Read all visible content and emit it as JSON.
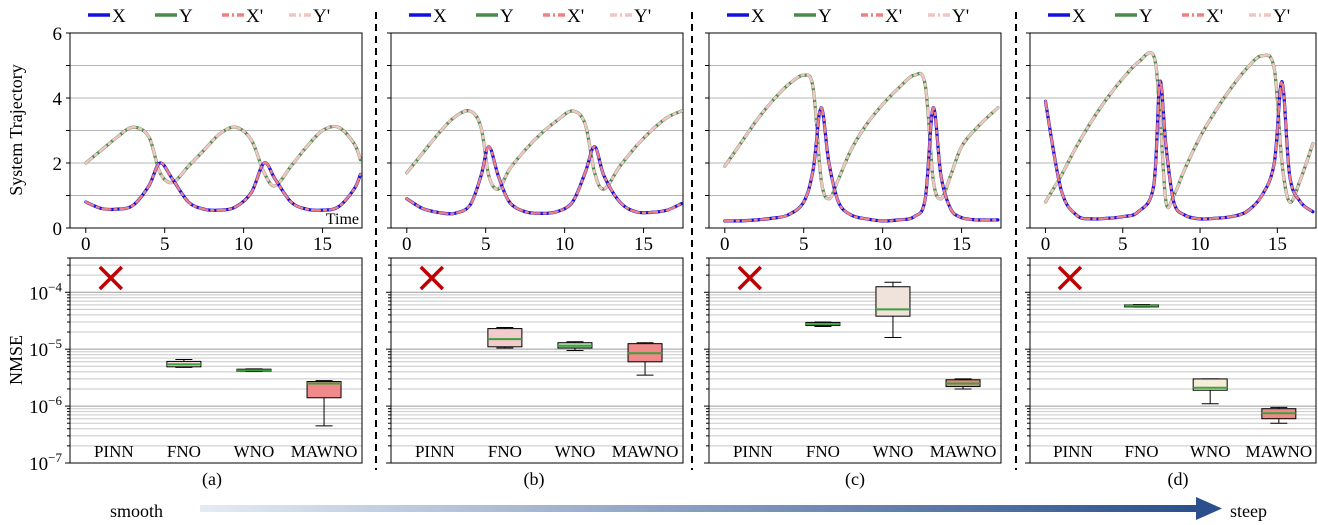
{
  "figure": {
    "legend_entries": [
      {
        "label": "X",
        "color": "#1010e0",
        "dash": "solid"
      },
      {
        "label": "Y",
        "color": "#4a8a4a",
        "dash": "solid"
      },
      {
        "label": "X'",
        "color": "#f08080",
        "dash": "dashdot"
      },
      {
        "label": "Y'",
        "color": "#f2c4c4",
        "dash": "dashdot"
      }
    ],
    "top_ylabel": "System Trajectory",
    "top_xlabel": "Time",
    "bottom_ylabel": "NMSE",
    "panel_labels": [
      "(a)",
      "(b)",
      "(c)",
      "(d)"
    ],
    "arrow_left_label": "smooth",
    "arrow_right_label": "steep"
  },
  "chart_data": [
    {
      "type": "line",
      "panel": "(a)",
      "xlim": [
        -1,
        17.5
      ],
      "ylim": [
        0,
        6
      ],
      "x_ticks": [
        "0",
        "5",
        "10",
        "15"
      ],
      "y_ticks": [
        "0",
        "2",
        "4",
        "6"
      ],
      "series": [
        {
          "name": "X",
          "x": [
            0,
            1,
            2,
            3,
            4,
            4.7,
            5.5,
            6.5,
            7.5,
            8.5,
            9.5,
            10.5,
            11.3,
            12,
            13,
            14,
            15,
            16,
            17,
            17.4
          ],
          "y": [
            0.8,
            0.6,
            0.58,
            0.7,
            1.3,
            2.0,
            1.5,
            0.8,
            0.58,
            0.55,
            0.65,
            1.1,
            2.0,
            1.5,
            0.8,
            0.58,
            0.55,
            0.65,
            1.2,
            1.65
          ]
        },
        {
          "name": "Y",
          "x": [
            0,
            1,
            2,
            3,
            4,
            4.7,
            5.5,
            6.5,
            7.5,
            8.5,
            9.5,
            10.5,
            11.3,
            12,
            13,
            14,
            15,
            16,
            17,
            17.4
          ],
          "y": [
            2.0,
            2.4,
            2.8,
            3.1,
            2.8,
            1.7,
            1.4,
            1.9,
            2.4,
            2.9,
            3.1,
            2.7,
            1.7,
            1.3,
            1.9,
            2.5,
            3.0,
            3.1,
            2.6,
            2.1
          ]
        }
      ]
    },
    {
      "type": "line",
      "panel": "(b)",
      "xlim": [
        -1,
        17.5
      ],
      "ylim": [
        0,
        6
      ],
      "x_ticks": [
        "0",
        "5",
        "10",
        "15"
      ],
      "y_ticks": [],
      "series": [
        {
          "name": "X",
          "x": [
            0,
            1,
            2,
            3,
            4,
            4.7,
            5.2,
            5.8,
            6.5,
            7.5,
            8.5,
            9.5,
            10.5,
            11.3,
            11.9,
            12.5,
            13.5,
            14.5,
            15.5,
            16.5,
            17.4
          ],
          "y": [
            0.9,
            0.6,
            0.48,
            0.45,
            0.7,
            1.6,
            2.5,
            1.6,
            0.8,
            0.5,
            0.45,
            0.5,
            0.8,
            1.7,
            2.5,
            1.6,
            0.8,
            0.5,
            0.48,
            0.55,
            0.75
          ]
        },
        {
          "name": "Y",
          "x": [
            0,
            1,
            2,
            3,
            4,
            4.7,
            5.2,
            5.8,
            6.5,
            7.5,
            8.5,
            9.5,
            10.5,
            11.3,
            11.9,
            12.5,
            13.5,
            14.5,
            15.5,
            16.5,
            17.4
          ],
          "y": [
            1.7,
            2.3,
            2.9,
            3.4,
            3.6,
            3.1,
            1.6,
            1.2,
            1.8,
            2.4,
            2.9,
            3.3,
            3.6,
            3.2,
            1.7,
            1.2,
            1.9,
            2.5,
            3.0,
            3.4,
            3.6
          ]
        }
      ]
    },
    {
      "type": "line",
      "panel": "(c)",
      "xlim": [
        -1,
        17.5
      ],
      "ylim": [
        0,
        6
      ],
      "x_ticks": [
        "0",
        "5",
        "10",
        "15"
      ],
      "y_ticks": [],
      "series": [
        {
          "name": "X",
          "x": [
            0,
            1,
            2,
            3,
            4,
            5,
            5.6,
            6.1,
            6.6,
            7.2,
            8,
            9,
            10,
            11,
            12,
            12.7,
            13.2,
            13.7,
            14.3,
            15,
            16,
            17.3
          ],
          "y": [
            0.22,
            0.22,
            0.25,
            0.3,
            0.4,
            0.8,
            1.8,
            3.7,
            2.0,
            0.8,
            0.4,
            0.28,
            0.22,
            0.25,
            0.35,
            0.9,
            3.7,
            1.6,
            0.6,
            0.32,
            0.25,
            0.25
          ]
        },
        {
          "name": "Y",
          "x": [
            0,
            1,
            2,
            3,
            4,
            5,
            5.6,
            6.1,
            6.6,
            7.2,
            8,
            9,
            10,
            11,
            12,
            12.7,
            13.2,
            13.7,
            14.3,
            15,
            16,
            17.3
          ],
          "y": [
            1.9,
            2.6,
            3.3,
            3.9,
            4.4,
            4.7,
            4.3,
            1.5,
            0.9,
            1.5,
            2.4,
            3.2,
            3.8,
            4.3,
            4.7,
            4.4,
            1.5,
            0.9,
            1.6,
            2.5,
            3.1,
            3.7
          ]
        }
      ]
    },
    {
      "type": "line",
      "panel": "(d)",
      "xlim": [
        -1,
        17.5
      ],
      "ylim": [
        0,
        6
      ],
      "x_ticks": [
        "0",
        "5",
        "10",
        "15"
      ],
      "y_ticks": [],
      "series": [
        {
          "name": "X",
          "x": [
            0,
            1,
            2,
            3,
            4,
            5,
            6,
            7,
            7.4,
            7.8,
            8.3,
            9,
            10,
            11,
            12,
            13,
            14,
            14.8,
            15.3,
            15.8,
            16.5,
            17.3
          ],
          "y": [
            3.9,
            1.2,
            0.4,
            0.28,
            0.3,
            0.35,
            0.5,
            1.3,
            4.5,
            2.5,
            0.8,
            0.4,
            0.28,
            0.3,
            0.35,
            0.5,
            1.0,
            2.0,
            4.5,
            1.6,
            0.8,
            0.5
          ]
        },
        {
          "name": "Y",
          "x": [
            0,
            1,
            2,
            3,
            4,
            5,
            6,
            7,
            7.4,
            7.8,
            8.3,
            9,
            10,
            11,
            12,
            13,
            14,
            14.8,
            15.3,
            15.8,
            16.5,
            17.3
          ],
          "y": [
            0.8,
            1.6,
            2.5,
            3.3,
            4.0,
            4.6,
            5.1,
            5.3,
            3.5,
            0.8,
            1.0,
            1.8,
            2.8,
            3.6,
            4.3,
            4.9,
            5.3,
            4.9,
            2.0,
            0.8,
            1.5,
            2.6
          ]
        }
      ]
    },
    {
      "type": "box",
      "panel": "(a)",
      "yscale": "log",
      "ylim": [
        1e-07,
        0.0004
      ],
      "y_ticks": [
        "10-7",
        "10-6",
        "10-5",
        "10-4"
      ],
      "categories": [
        "PINN",
        "FNO",
        "WNO",
        "MAWNO"
      ],
      "failed": [
        "PINN"
      ],
      "boxes": [
        {
          "name": "FNO",
          "min": 4.8e-06,
          "q1": 4.9e-06,
          "median": 5.4e-06,
          "q3": 6.1e-06,
          "max": 6.6e-06,
          "fill": "#ead6d2"
        },
        {
          "name": "WNO",
          "min": 4.05e-06,
          "q1": 4.1e-06,
          "median": 4.25e-06,
          "q3": 4.45e-06,
          "max": 4.5e-06,
          "fill": "#bfe2bf"
        },
        {
          "name": "MAWNO",
          "min": 4.5e-07,
          "q1": 1.4e-06,
          "median": 2.5e-06,
          "q3": 2.7e-06,
          "max": 2.8e-06,
          "fill": "#f08a8a"
        }
      ]
    },
    {
      "type": "box",
      "panel": "(b)",
      "yscale": "log",
      "ylim": [
        1e-07,
        0.0004
      ],
      "y_ticks": [],
      "categories": [
        "PINN",
        "FNO",
        "WNO",
        "MAWNO"
      ],
      "failed": [
        "PINN"
      ],
      "boxes": [
        {
          "name": "FNO",
          "min": 1.05e-05,
          "q1": 1.1e-05,
          "median": 1.5e-05,
          "q3": 2.3e-05,
          "max": 2.4e-05,
          "fill": "#f2cccc"
        },
        {
          "name": "WNO",
          "min": 9.5e-06,
          "q1": 1.05e-05,
          "median": 1.15e-05,
          "q3": 1.3e-05,
          "max": 1.35e-05,
          "fill": "#bfe2bf"
        },
        {
          "name": "MAWNO",
          "min": 3.5e-06,
          "q1": 6e-06,
          "median": 8.5e-06,
          "q3": 1.25e-05,
          "max": 1.3e-05,
          "fill": "#f08a8a"
        }
      ]
    },
    {
      "type": "box",
      "panel": "(c)",
      "yscale": "log",
      "ylim": [
        1e-07,
        0.0004
      ],
      "y_ticks": [],
      "categories": [
        "PINN",
        "FNO",
        "WNO",
        "MAWNO"
      ],
      "failed": [
        "PINN"
      ],
      "boxes": [
        {
          "name": "FNO",
          "min": 2.5e-05,
          "q1": 2.6e-05,
          "median": 2.75e-05,
          "q3": 2.95e-05,
          "max": 3e-05,
          "fill": "#bfe2bf"
        },
        {
          "name": "WNO",
          "min": 1.6e-05,
          "q1": 3.8e-05,
          "median": 5e-05,
          "q3": 0.000125,
          "max": 0.00015,
          "fill": "#efe3dc"
        },
        {
          "name": "MAWNO",
          "min": 2e-06,
          "q1": 2.2e-06,
          "median": 2.5e-06,
          "q3": 2.9e-06,
          "max": 3e-06,
          "fill": "#e08a80"
        }
      ]
    },
    {
      "type": "box",
      "panel": "(d)",
      "yscale": "log",
      "ylim": [
        1e-07,
        0.0004
      ],
      "y_ticks": [],
      "categories": [
        "PINN",
        "FNO",
        "WNO",
        "MAWNO"
      ],
      "failed": [
        "PINN"
      ],
      "boxes": [
        {
          "name": "FNO",
          "min": 5.5e-05,
          "q1": 5.6e-05,
          "median": 5.8e-05,
          "q3": 6e-05,
          "max": 6.1e-05,
          "fill": "#bfe2bf"
        },
        {
          "name": "WNO",
          "min": 1.1e-06,
          "q1": 1.9e-06,
          "median": 2.1e-06,
          "q3": 3e-06,
          "max": 3e-06,
          "fill": "#f5ecd8"
        },
        {
          "name": "MAWNO",
          "min": 5e-07,
          "q1": 6e-07,
          "median": 7.5e-07,
          "q3": 9e-07,
          "max": 9.5e-07,
          "fill": "#f08a8a"
        }
      ]
    }
  ]
}
